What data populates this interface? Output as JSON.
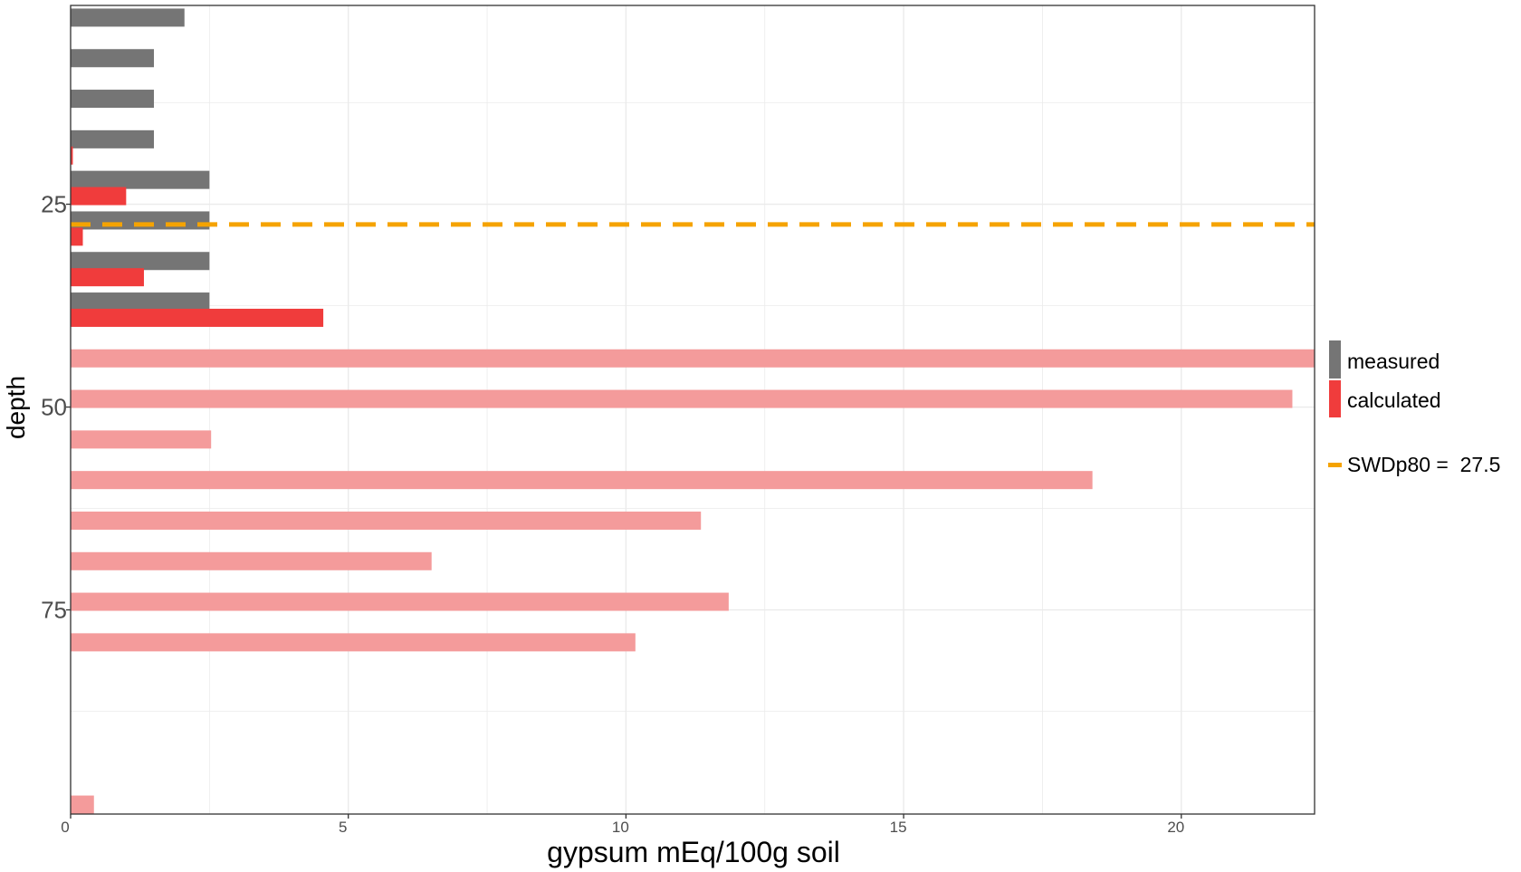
{
  "chart_data": {
    "type": "bar",
    "orientation": "horizontal",
    "xlabel": "gypsum mEq/100g soil",
    "ylabel": "depth",
    "xlim": [
      0,
      22.4
    ],
    "ylim": [
      100,
      1
    ],
    "x_ticks": [
      0,
      5,
      10,
      15,
      20
    ],
    "x_tick_labels": [
      "0",
      "5",
      "10",
      "15",
      "20"
    ],
    "y_ticks": [
      25,
      50,
      75
    ],
    "y_tick_labels": [
      "25",
      "50",
      "75"
    ],
    "grid": true,
    "legend_position": "right",
    "colors": {
      "measured": "#757575",
      "calculated": "#f03c3c",
      "calculated_faded": "#f49b9b",
      "threshold": "#f5a300"
    },
    "series": [
      {
        "name": "measured",
        "depth": [
          2,
          7,
          12,
          17,
          22,
          27,
          32,
          37
        ],
        "values": [
          2.05,
          1.5,
          1.5,
          1.5,
          2.5,
          2.5,
          2.5,
          2.5
        ]
      },
      {
        "name": "calculated",
        "depth": [
          19,
          24,
          29,
          34,
          39,
          44,
          49,
          54,
          59,
          64,
          69,
          74,
          79,
          99
        ],
        "values": [
          0.04,
          1.0,
          0.22,
          1.32,
          4.55,
          22.4,
          22.0,
          2.53,
          18.4,
          11.35,
          6.5,
          11.85,
          10.17,
          0.42
        ],
        "faded": [
          false,
          false,
          false,
          false,
          false,
          true,
          true,
          true,
          true,
          true,
          true,
          true,
          true,
          true
        ]
      }
    ],
    "threshold_line": {
      "name": "SWDp80",
      "label": "SWDp80 =  27.5",
      "depth": 27.5
    }
  }
}
